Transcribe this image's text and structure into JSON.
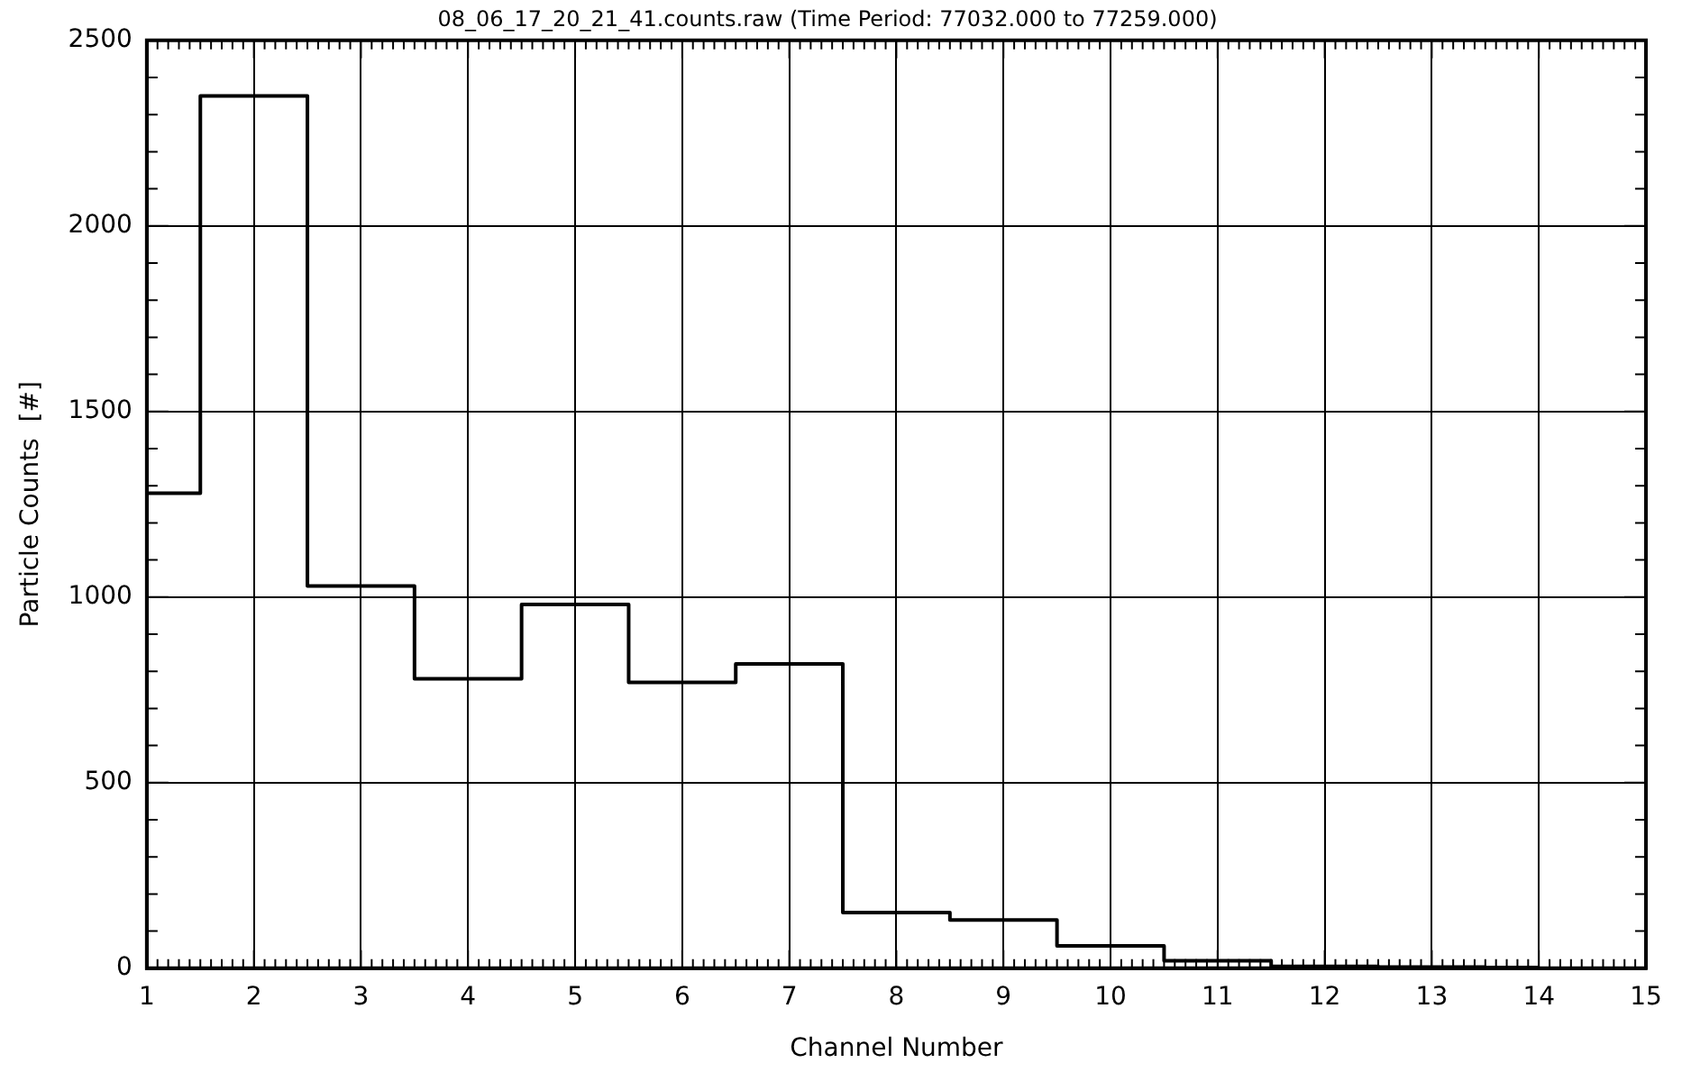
{
  "chart_data": {
    "type": "step",
    "title": "08_06_17_20_21_41.counts.raw (Time Period: 77032.000 to 77259.000)",
    "xlabel": "Channel Number",
    "ylabel": "Particle Counts  [#]",
    "x": [
      1,
      2,
      3,
      4,
      5,
      6,
      7,
      8,
      9,
      10,
      11,
      12,
      13,
      14
    ],
    "values": [
      1280,
      2350,
      1030,
      780,
      980,
      770,
      820,
      150,
      130,
      60,
      20,
      5,
      3,
      2
    ],
    "color": "#000000",
    "xlim": [
      1,
      15
    ],
    "xticks": [
      1,
      2,
      3,
      4,
      5,
      6,
      7,
      8,
      9,
      10,
      11,
      12,
      13,
      14,
      15
    ],
    "ylim": [
      0,
      2500
    ],
    "yticks": [
      0,
      500,
      1000,
      1500,
      2000,
      2500
    ],
    "grid": true,
    "line_style": "solid"
  }
}
